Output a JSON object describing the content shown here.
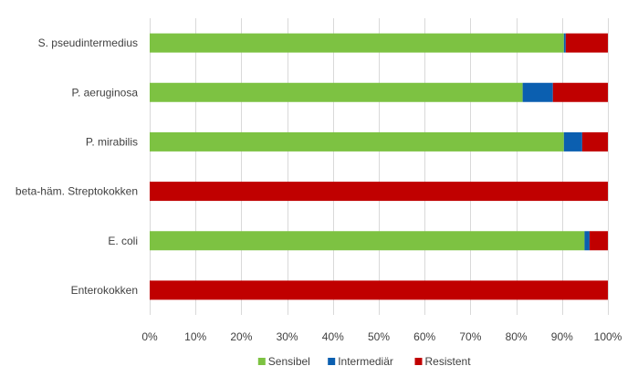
{
  "chart_data": {
    "type": "bar",
    "orientation": "horizontal",
    "stacked": "percent",
    "categories": [
      "S. pseudintermedius",
      "P. aeruginosa",
      "P. mirabilis",
      "beta-häm. Streptokokken",
      "E. coli",
      "Enterokokken"
    ],
    "series": [
      {
        "name": "Sensibel",
        "color": "#7dc242",
        "values": [
          90.4,
          81.4,
          90.4,
          0,
          94.9,
          0
        ]
      },
      {
        "name": "Intermediär",
        "color": "#0b5fb0",
        "values": [
          0.4,
          6.6,
          4.0,
          0,
          1.1,
          0
        ]
      },
      {
        "name": "Resistent",
        "color": "#c00000",
        "values": [
          9.2,
          12.0,
          5.6,
          100,
          4.0,
          100
        ]
      }
    ],
    "xticks": [
      "0%",
      "10%",
      "20%",
      "30%",
      "40%",
      "50%",
      "60%",
      "70%",
      "80%",
      "90%",
      "100%"
    ],
    "xlim": [
      0,
      100
    ],
    "grid": "vertical",
    "legend": "bottom",
    "title": "",
    "xlabel": "",
    "ylabel": ""
  }
}
